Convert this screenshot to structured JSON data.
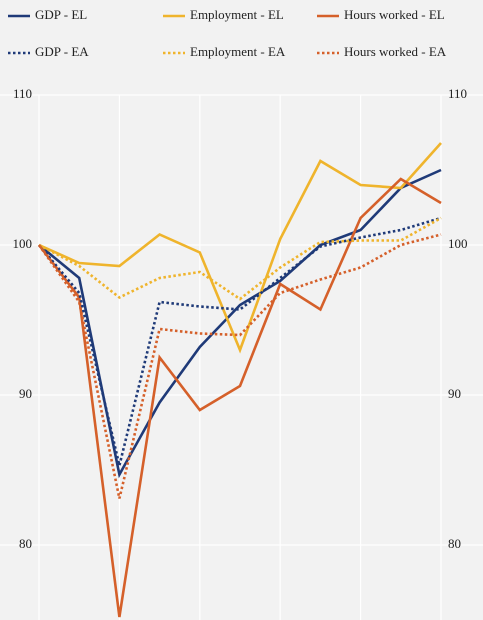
{
  "chart_data": {
    "type": "line",
    "categories": [
      null,
      null,
      null,
      null,
      null,
      null,
      null,
      null,
      null,
      null,
      null
    ],
    "series": [
      {
        "name": "GDP - EL",
        "color": "#1f3a78",
        "line_style": "solid",
        "values": [
          100,
          97.8,
          84.7,
          89.5,
          93.2,
          96,
          97.6,
          100,
          101,
          103.8,
          105
        ]
      },
      {
        "name": "Employment - EL",
        "color": "#efb42c",
        "line_style": "solid",
        "values": [
          100,
          98.8,
          98.6,
          100.7,
          99.5,
          93,
          100.4,
          105.6,
          104,
          103.8,
          106.8
        ]
      },
      {
        "name": "Hours worked - EL",
        "color": "#d5602a",
        "line_style": "solid",
        "values": [
          100,
          96.5,
          75.2,
          92.5,
          89,
          90.6,
          97.4,
          95.7,
          101.8,
          104.4,
          102.8
        ]
      },
      {
        "name": "GDP - EA",
        "color": "#1f3a78",
        "line_style": "dotted",
        "values": [
          100,
          96.8,
          85.3,
          96.2,
          95.9,
          95.7,
          97.8,
          99.9,
          100.5,
          101,
          101.8
        ]
      },
      {
        "name": "Employment - EA",
        "color": "#efb42c",
        "line_style": "dotted",
        "values": [
          100,
          98.6,
          96.5,
          97.8,
          98.2,
          96.4,
          98.5,
          100.2,
          100.3,
          100.3,
          101.8
        ]
      },
      {
        "name": "Hours worked - EA",
        "color": "#d5602a",
        "line_style": "dotted",
        "values": [
          100,
          96.2,
          83.1,
          94.4,
          94.1,
          94,
          96.8,
          97.7,
          98.5,
          100,
          100.7
        ]
      }
    ],
    "ylim": [
      75,
      110
    ],
    "yticks": [
      80,
      90,
      100,
      110
    ],
    "y2lim": [
      75,
      110
    ],
    "y2ticks": [
      80,
      90,
      100,
      110
    ],
    "grid": true
  }
}
